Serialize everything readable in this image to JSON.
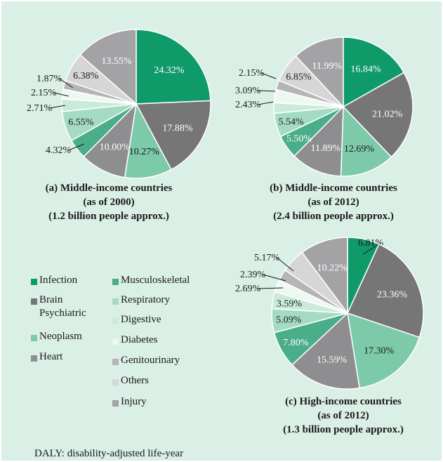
{
  "colors": {
    "background": "#daefe5",
    "Infection": "#0f9a6a",
    "Brain Psychiatric": "#767677",
    "Neoplasm": "#7ccaa9",
    "Heart": "#8e8d8f",
    "Musculoskeletal": "#4aae8a",
    "Respiratory": "#a6dbc3",
    "Digestive": "#c9ebdb",
    "Diabetes": "#eef8f3",
    "Genitourinary": "#b5b5b7",
    "Others": "#d6d6d8",
    "Injury": "#a3a2a5"
  },
  "legend": {
    "col1": [
      {
        "key": "Infection",
        "label": "Infection"
      },
      {
        "key": "Brain Psychiatric",
        "label": "Brain\nPsychiatric"
      },
      {
        "key": "Neoplasm",
        "label": "Neoplasm"
      },
      {
        "key": "Heart",
        "label": "Heart"
      }
    ],
    "col2": [
      {
        "key": "Musculoskeletal",
        "label": "Musculoskeletal"
      },
      {
        "key": "Respiratory",
        "label": "Respiratory"
      },
      {
        "key": "Digestive",
        "label": "Digestive"
      },
      {
        "key": "Diabetes",
        "label": "Diabetes"
      },
      {
        "key": "Genitourinary",
        "label": "Genitourinary"
      },
      {
        "key": "Others",
        "label": "Others"
      },
      {
        "key": "Injury",
        "label": "Injury"
      }
    ]
  },
  "footnote": "DALY: disability-adjusted life-year",
  "chart_data": [
    {
      "type": "pie",
      "caption": [
        "(a) Middle-income countries",
        "(as of 2000)",
        "(1.2 billion people approx.)"
      ],
      "categories": [
        "Infection",
        "Brain Psychiatric",
        "Neoplasm",
        "Heart",
        "Musculoskeletal",
        "Respiratory",
        "Digestive",
        "Diabetes",
        "Genitourinary",
        "Others",
        "Injury"
      ],
      "values": [
        24.32,
        17.88,
        10.27,
        10.0,
        4.32,
        6.55,
        2.71,
        2.15,
        1.87,
        6.38,
        13.55
      ],
      "labels": [
        "24.32%",
        "17.88%",
        "10.27%",
        "10.00%",
        "4.32%",
        "6.55%",
        "2.71%",
        "2.15%",
        "1.87%",
        "6.38%",
        "13.55%"
      ]
    },
    {
      "type": "pie",
      "caption": [
        "(b) Middle-income countries",
        "(as of 2012)",
        "(2.4 billion people approx.)"
      ],
      "categories": [
        "Infection",
        "Brain Psychiatric",
        "Neoplasm",
        "Heart",
        "Musculoskeletal",
        "Respiratory",
        "Digestive",
        "Diabetes",
        "Genitourinary",
        "Others",
        "Injury"
      ],
      "values": [
        16.84,
        21.02,
        12.69,
        11.89,
        5.5,
        5.54,
        2.43,
        3.09,
        2.15,
        6.85,
        11.99
      ],
      "labels": [
        "16.84%",
        "21.02%",
        "12.69%",
        "11.89%",
        "5.50%",
        "5.54%",
        "2.43%",
        "3.09%",
        "2.15%",
        "6.85%",
        "11.99%"
      ]
    },
    {
      "type": "pie",
      "caption": [
        "(c) High-income countries",
        "(as of 2012)",
        "(1.3 billion people approx.)"
      ],
      "categories": [
        "Infection",
        "Brain Psychiatric",
        "Neoplasm",
        "Heart",
        "Musculoskeletal",
        "Respiratory",
        "Digestive",
        "Diabetes",
        "Genitourinary",
        "Others",
        "Injury"
      ],
      "values": [
        6.81,
        23.36,
        17.3,
        15.59,
        7.8,
        5.09,
        3.59,
        2.69,
        2.39,
        5.17,
        10.22
      ],
      "labels": [
        "6.81%",
        "23.36%",
        "17.30%",
        "15.59%",
        "7.80%",
        "5.09%",
        "3.59%",
        "2.69%",
        "2.39%",
        "5.17%",
        "10.22%"
      ]
    }
  ]
}
